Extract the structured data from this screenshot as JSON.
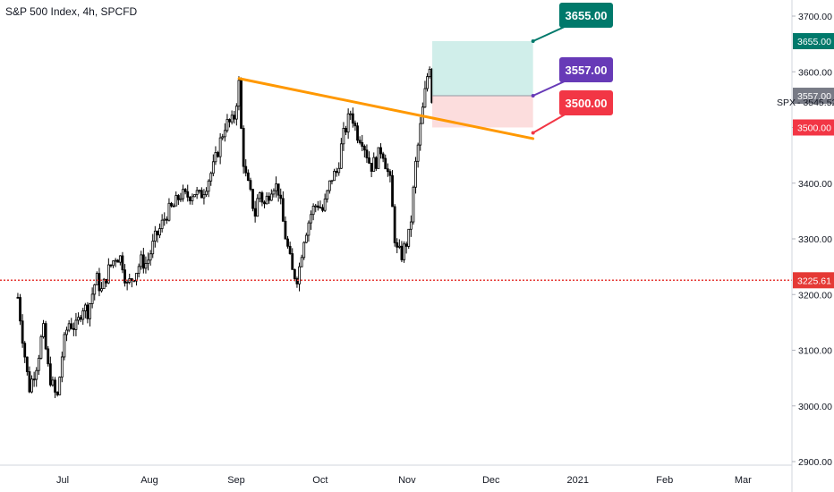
{
  "header": {
    "title": "S&P 500 Index, 4h, SPCFD"
  },
  "colors": {
    "candle": "#000000",
    "trendline": "#ff9800",
    "support": "#e53935",
    "target_zone": "#c8ebe6",
    "stop_zone": "#fbd7d7",
    "target_label": "#00796b",
    "entry_label": "#673ab7",
    "stop_label": "#f23645",
    "price_label": "#787b86",
    "axis_text": "#131722"
  },
  "chart_data": {
    "type": "candlestick",
    "symbol": "SPX",
    "timeframe": "4h",
    "ylim": [
      2895,
      3735
    ],
    "y_ticks": [
      2900,
      3000,
      3100,
      3200,
      3300,
      3400,
      3500,
      3600,
      3700
    ],
    "y_tick_labels": [
      "2900.00",
      "3000.00",
      "3100.00",
      "3200.00",
      "3300.00",
      "3400.00",
      "3500.00",
      "3600.00",
      "3700.00"
    ],
    "x_ticks": [
      "Jul",
      "Aug",
      "Sep",
      "Oct",
      "Nov",
      "Dec",
      "2021",
      "Feb",
      "Mar"
    ],
    "current_price": {
      "label": "SPX",
      "value": "3545.52"
    },
    "support_level": {
      "value": 3225.61,
      "label": "3225.61"
    },
    "trendline": {
      "start": {
        "date": "2020-09-02",
        "value": 3588
      },
      "end": {
        "date": "2020-12-16",
        "value": 3480
      }
    },
    "position": {
      "entry": {
        "value": 3557,
        "label": "3557.00"
      },
      "target": {
        "value": 3655,
        "label": "3655.00"
      },
      "stop": {
        "value": 3500,
        "label": "3500.00"
      },
      "from_date": "2020-11-10",
      "to_date": "2020-12-16"
    },
    "close_path": [
      [
        "2020-06-15",
        3195
      ],
      [
        "2020-06-17",
        3110
      ],
      [
        "2020-06-19",
        3030
      ],
      [
        "2020-06-22",
        3080
      ],
      [
        "2020-06-24",
        3140
      ],
      [
        "2020-06-26",
        3060
      ],
      [
        "2020-06-29",
        3010
      ],
      [
        "2020-07-01",
        3100
      ],
      [
        "2020-07-03",
        3150
      ],
      [
        "2020-07-06",
        3140
      ],
      [
        "2020-07-08",
        3180
      ],
      [
        "2020-07-10",
        3170
      ],
      [
        "2020-07-13",
        3230
      ],
      [
        "2020-07-15",
        3205
      ],
      [
        "2020-07-17",
        3240
      ],
      [
        "2020-07-20",
        3270
      ],
      [
        "2020-07-22",
        3265
      ],
      [
        "2020-07-24",
        3215
      ],
      [
        "2020-07-27",
        3240
      ],
      [
        "2020-07-29",
        3260
      ],
      [
        "2020-07-31",
        3255
      ],
      [
        "2020-08-03",
        3300
      ],
      [
        "2020-08-05",
        3320
      ],
      [
        "2020-08-07",
        3345
      ],
      [
        "2020-08-10",
        3360
      ],
      [
        "2020-08-12",
        3380
      ],
      [
        "2020-08-14",
        3375
      ],
      [
        "2020-08-17",
        3385
      ],
      [
        "2020-08-19",
        3375
      ],
      [
        "2020-08-21",
        3395
      ],
      [
        "2020-08-24",
        3430
      ],
      [
        "2020-08-26",
        3470
      ],
      [
        "2020-08-28",
        3505
      ],
      [
        "2020-08-31",
        3510
      ],
      [
        "2020-09-02",
        3580
      ],
      [
        "2020-09-03",
        3470
      ],
      [
        "2020-09-04",
        3420
      ],
      [
        "2020-09-08",
        3340
      ],
      [
        "2020-09-09",
        3390
      ],
      [
        "2020-09-11",
        3360
      ],
      [
        "2020-09-14",
        3400
      ],
      [
        "2020-09-16",
        3390
      ],
      [
        "2020-09-18",
        3320
      ],
      [
        "2020-09-21",
        3240
      ],
      [
        "2020-09-23",
        3230
      ],
      [
        "2020-09-25",
        3300
      ],
      [
        "2020-09-28",
        3350
      ],
      [
        "2020-09-30",
        3365
      ],
      [
        "2020-10-02",
        3350
      ],
      [
        "2020-10-05",
        3410
      ],
      [
        "2020-10-07",
        3420
      ],
      [
        "2020-10-09",
        3480
      ],
      [
        "2020-10-12",
        3530
      ],
      [
        "2020-10-14",
        3490
      ],
      [
        "2020-10-16",
        3480
      ],
      [
        "2020-10-19",
        3430
      ],
      [
        "2020-10-21",
        3440
      ],
      [
        "2020-10-23",
        3465
      ],
      [
        "2020-10-26",
        3400
      ],
      [
        "2020-10-28",
        3280
      ],
      [
        "2020-10-30",
        3270
      ],
      [
        "2020-11-02",
        3310
      ],
      [
        "2020-11-04",
        3430
      ],
      [
        "2020-11-06",
        3510
      ],
      [
        "2020-11-09",
        3620
      ],
      [
        "2020-11-10",
        3545
      ]
    ]
  }
}
